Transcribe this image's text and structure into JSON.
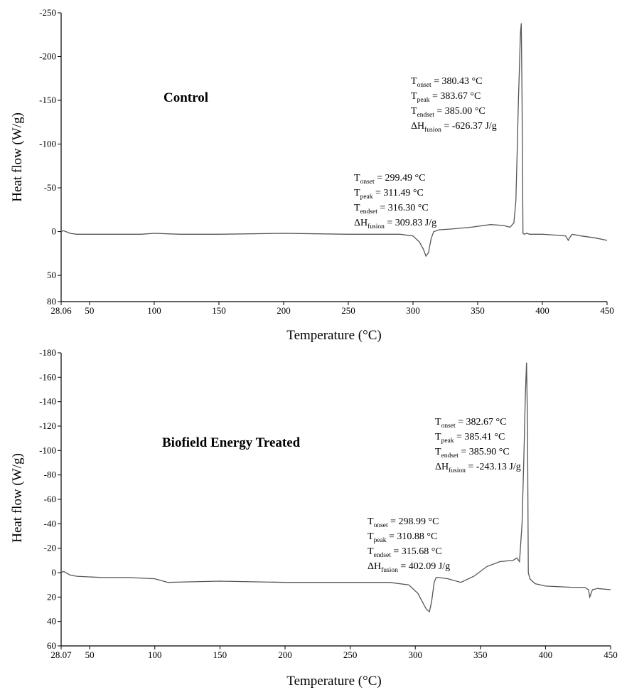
{
  "chart_data": [
    {
      "type": "line",
      "title": "Control",
      "xlabel": "Temperature (°C)",
      "ylabel": "Heat flow (W/g)",
      "xlim": [
        28.06,
        450
      ],
      "ylim": [
        -250,
        80
      ],
      "y_inverted": true,
      "x_ticks": [
        {
          "v": 28.06,
          "label": "28.06"
        },
        {
          "v": 50,
          "label": "50"
        },
        {
          "v": 100,
          "label": "100"
        },
        {
          "v": 150,
          "label": "150"
        },
        {
          "v": 200,
          "label": "200"
        },
        {
          "v": 250,
          "label": "250"
        },
        {
          "v": 300,
          "label": "300"
        },
        {
          "v": 350,
          "label": "350"
        },
        {
          "v": 400,
          "label": "400"
        },
        {
          "v": 450,
          "label": "450"
        }
      ],
      "y_ticks": [
        {
          "v": -250,
          "label": "-250"
        },
        {
          "v": -200,
          "label": "-200"
        },
        {
          "v": -150,
          "label": "-150"
        },
        {
          "v": -100,
          "label": "-100"
        },
        {
          "v": -50,
          "label": "-50"
        },
        {
          "v": 0,
          "label": "0"
        },
        {
          "v": 50,
          "label": "50"
        },
        {
          "v": 80,
          "label": "80"
        }
      ],
      "series": [
        {
          "x": [
            28.06,
            30,
            35,
            40,
            60,
            80,
            90,
            100,
            120,
            150,
            200,
            250,
            270,
            290,
            300,
            305,
            308,
            310,
            312,
            314,
            316,
            320,
            330,
            345,
            360,
            370,
            375,
            378,
            379.5,
            380.5,
            381.5,
            382.3,
            383,
            383.67,
            384.3,
            385,
            386,
            388,
            390,
            400,
            410,
            418,
            420,
            421,
            423,
            430,
            440,
            450
          ],
          "y": [
            0,
            -1,
            2,
            3,
            3,
            3,
            3,
            2,
            3,
            3,
            2,
            3,
            3,
            3,
            5,
            12,
            20,
            28,
            24,
            8,
            0,
            -2,
            -3,
            -5,
            -8,
            -7,
            -5,
            -10,
            -35,
            -90,
            -150,
            -190,
            -225,
            -238,
            -150,
            2,
            3,
            2,
            3,
            3,
            4,
            5,
            10,
            7,
            3,
            5,
            7,
            10
          ]
        }
      ],
      "annotations": [
        {
          "lines": [
            {
              "sym": "T",
              "sub": "onset",
              "text": " = 380.43 °C"
            },
            {
              "sym": "T",
              "sub": "peak",
              "text": " = 383.67 °C"
            },
            {
              "sym": "T",
              "sub": "endset",
              "text": " = 385.00 °C"
            },
            {
              "sym": "ΔH",
              "sub": "fusion",
              "text": " = -626.37 J/g"
            }
          ]
        },
        {
          "lines": [
            {
              "sym": "T",
              "sub": "onset",
              "text": " = 299.49 °C"
            },
            {
              "sym": "T",
              "sub": "peak",
              "text": " = 311.49 °C"
            },
            {
              "sym": "T",
              "sub": "endset",
              "text": " = 316.30 °C"
            },
            {
              "sym": "ΔH",
              "sub": "fusion",
              "text": " = 309.83  J/g"
            }
          ]
        }
      ]
    },
    {
      "type": "line",
      "title": "Biofield Energy Treated",
      "xlabel": "Temperature (°C)",
      "ylabel": "Heat flow (W/g)",
      "xlim": [
        28.07,
        450
      ],
      "ylim": [
        -180,
        60
      ],
      "y_inverted": true,
      "x_ticks": [
        {
          "v": 28.07,
          "label": "28.07"
        },
        {
          "v": 50,
          "label": "50"
        },
        {
          "v": 100,
          "label": "100"
        },
        {
          "v": 150,
          "label": "150"
        },
        {
          "v": 200,
          "label": "200"
        },
        {
          "v": 250,
          "label": "250"
        },
        {
          "v": 300,
          "label": "300"
        },
        {
          "v": 350,
          "label": "350"
        },
        {
          "v": 400,
          "label": "400"
        },
        {
          "v": 450,
          "label": "450"
        }
      ],
      "y_ticks": [
        {
          "v": -180,
          "label": "-180"
        },
        {
          "v": -160,
          "label": "-160"
        },
        {
          "v": -140,
          "label": "-140"
        },
        {
          "v": -120,
          "label": "-120"
        },
        {
          "v": -100,
          "label": "-100"
        },
        {
          "v": -80,
          "label": "-80"
        },
        {
          "v": -60,
          "label": "-60"
        },
        {
          "v": -40,
          "label": "-40"
        },
        {
          "v": -20,
          "label": "-20"
        },
        {
          "v": 0,
          "label": "0"
        },
        {
          "v": 20,
          "label": "20"
        },
        {
          "v": 40,
          "label": "40"
        },
        {
          "v": 60,
          "label": "60"
        }
      ],
      "series": [
        {
          "x": [
            28.07,
            30,
            35,
            40,
            60,
            80,
            100,
            110,
            150,
            200,
            250,
            280,
            295,
            302,
            306,
            308.5,
            310.88,
            312.5,
            314.5,
            316,
            318,
            325,
            335,
            345,
            355,
            365,
            375,
            378,
            380,
            382,
            383.5,
            384.5,
            385.41,
            386.2,
            386.8,
            388,
            392,
            400,
            420,
            430,
            433,
            434,
            436,
            440,
            450
          ],
          "y": [
            0,
            -1,
            2,
            3,
            4,
            4,
            5,
            8,
            7,
            8,
            8,
            8,
            10,
            17,
            25,
            30,
            32,
            24,
            8,
            4,
            4,
            5,
            8,
            3,
            -5,
            -9,
            -10,
            -12,
            -9,
            -40,
            -100,
            -145,
            -172,
            -120,
            0,
            5,
            9,
            11,
            12,
            12,
            14,
            20,
            14,
            13,
            14
          ]
        }
      ],
      "annotations": [
        {
          "lines": [
            {
              "sym": "T",
              "sub": "onset",
              "text": " = 382.67 °C"
            },
            {
              "sym": "T",
              "sub": "peak",
              "text": " = 385.41 °C"
            },
            {
              "sym": "T",
              "sub": "endset",
              "text": " = 385.90 °C"
            },
            {
              "sym": "ΔH",
              "sub": "fusion",
              "text": " = -243.13  J/g"
            }
          ]
        },
        {
          "lines": [
            {
              "sym": "T",
              "sub": "onset",
              "text": " = 298.99 °C"
            },
            {
              "sym": "T",
              "sub": "peak",
              "text": " = 310.88 °C"
            },
            {
              "sym": "T",
              "sub": "endset",
              "text": " = 315.68 °C"
            },
            {
              "sym": "ΔH",
              "sub": "fusion",
              "text": " = 402.09  J/g"
            }
          ]
        }
      ]
    }
  ]
}
